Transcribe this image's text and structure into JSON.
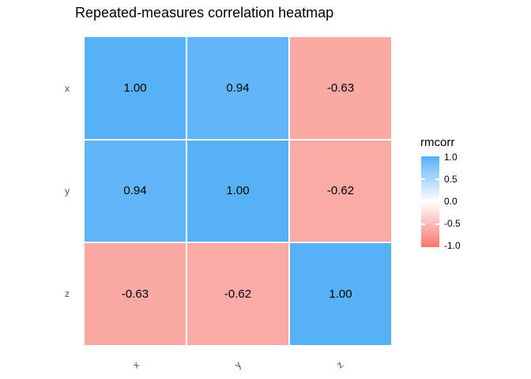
{
  "chart": {
    "title": "Repeated-measures correlation heatmap",
    "y_labels": [
      "x",
      "y",
      "z"
    ],
    "x_labels": [
      "x",
      "y",
      "z"
    ],
    "cells": [
      {
        "row": "x",
        "col": "x",
        "label": "1.00",
        "color": "#56B1F7"
      },
      {
        "row": "x",
        "col": "y",
        "label": "0.94",
        "color": "#61B6F8"
      },
      {
        "row": "x",
        "col": "z",
        "label": "-0.63",
        "color": "#FBA9A3"
      },
      {
        "row": "y",
        "col": "x",
        "label": "0.94",
        "color": "#61B6F8"
      },
      {
        "row": "y",
        "col": "y",
        "label": "1.00",
        "color": "#56B1F7"
      },
      {
        "row": "y",
        "col": "z",
        "label": "-0.62",
        "color": "#FBABA5"
      },
      {
        "row": "z",
        "col": "x",
        "label": "-0.63",
        "color": "#FBA9A3"
      },
      {
        "row": "z",
        "col": "y",
        "label": "-0.62",
        "color": "#FBABA5"
      },
      {
        "row": "z",
        "col": "z",
        "label": "1.00",
        "color": "#56B1F7"
      }
    ],
    "legend": {
      "title": "rmcorr",
      "tick_labels": [
        "1.0",
        "0.5",
        "0.0",
        "-0.5",
        "-1.0"
      ],
      "gradient_high": "#56B1F7",
      "gradient_mid": "#FFFFFF",
      "gradient_low": "#F8766D"
    }
  },
  "chart_data": {
    "type": "heatmap",
    "title": "Repeated-measures correlation heatmap",
    "x_categories": [
      "x",
      "y",
      "z"
    ],
    "y_categories": [
      "x",
      "y",
      "z"
    ],
    "values": [
      [
        1.0,
        0.94,
        -0.63
      ],
      [
        0.94,
        1.0,
        -0.62
      ],
      [
        -0.63,
        -0.62,
        1.0
      ]
    ],
    "value_label": "rmcorr",
    "value_range": [
      -1.0,
      1.0
    ],
    "legend_ticks": [
      1.0,
      0.5,
      0.0,
      -0.5,
      -1.0
    ],
    "legend_position": "right",
    "color_scale": {
      "high": "#56B1F7",
      "mid": "#FFFFFF",
      "low": "#F8766D"
    },
    "x_tick_angle": 45,
    "grid": false,
    "cell_border_color": "#FFFFFF"
  }
}
